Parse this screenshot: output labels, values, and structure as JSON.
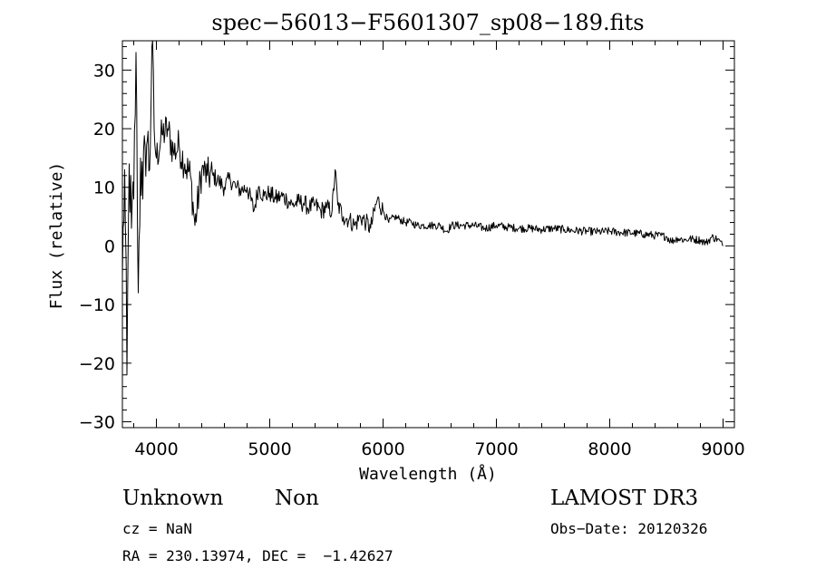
{
  "chart_data": {
    "type": "line",
    "title": "spec−56013−F5601307_sp08−189.fits",
    "xlabel": "Wavelength (Å)",
    "ylabel": "Flux (relative)",
    "xlim": [
      3700,
      9100
    ],
    "ylim": [
      -31,
      35
    ],
    "xticks": [
      4000,
      5000,
      6000,
      7000,
      8000,
      9000
    ],
    "xtick_labels": [
      "4000",
      "5000",
      "6000",
      "7000",
      "8000",
      "9000"
    ],
    "yticks": [
      -30,
      -20,
      -10,
      0,
      10,
      20,
      30
    ],
    "ytick_labels": [
      "−30",
      "−20",
      "−10",
      "0",
      "10",
      "20",
      "30"
    ],
    "grid": false,
    "series": [
      {
        "name": "flux",
        "x": [
          3700,
          3720,
          3740,
          3760,
          3780,
          3800,
          3820,
          3840,
          3860,
          3880,
          3900,
          3920,
          3940,
          3960,
          3980,
          4000,
          4050,
          4100,
          4150,
          4200,
          4250,
          4300,
          4340,
          4400,
          4450,
          4500,
          4550,
          4600,
          4650,
          4700,
          4750,
          4800,
          4861,
          4900,
          4950,
          5000,
          5050,
          5100,
          5150,
          5200,
          5250,
          5300,
          5350,
          5400,
          5450,
          5500,
          5550,
          5577,
          5600,
          5650,
          5700,
          5750,
          5800,
          5850,
          5890,
          5950,
          6000,
          6050,
          6100,
          6150,
          6200,
          6250,
          6300,
          6350,
          6400,
          6450,
          6500,
          6563,
          6600,
          6700,
          6800,
          6900,
          7000,
          7100,
          7200,
          7300,
          7400,
          7500,
          7600,
          7700,
          7800,
          7900,
          8000,
          8100,
          8200,
          8300,
          8400,
          8500,
          8542,
          8600,
          8662,
          8700,
          8800,
          8850,
          8900,
          8950,
          9000
        ],
        "y": [
          -5,
          13,
          -22,
          14,
          3,
          8,
          33,
          -8,
          15,
          8,
          17,
          18,
          13,
          34,
          20,
          15,
          19,
          20,
          16,
          17,
          14,
          12,
          3.5,
          13,
          12,
          12,
          11,
          10,
          11.5,
          10,
          9.5,
          10,
          6,
          10,
          8.5,
          9,
          8,
          8.5,
          8,
          7,
          7.5,
          7.3,
          6.5,
          7,
          6,
          6.5,
          6,
          13,
          7,
          5,
          4.5,
          3.5,
          5,
          4,
          3,
          8,
          6,
          4,
          5,
          4.5,
          4,
          4,
          3.5,
          3.5,
          3.5,
          3.5,
          3.5,
          2.5,
          3.5,
          3.5,
          3.5,
          3,
          3.5,
          3.2,
          3,
          3,
          2.8,
          3,
          2.8,
          2.6,
          2.5,
          2.4,
          2.5,
          2.3,
          2.2,
          2,
          1.8,
          1.6,
          0.8,
          1.3,
          1.0,
          1.2,
          1,
          0.5,
          1.5,
          1.2,
          0
        ]
      }
    ]
  },
  "info": {
    "object_class": "Unknown",
    "object_subclass": "Non",
    "survey": "LAMOST DR3",
    "redshift_line": "cz = NaN",
    "obs_date_line": "Obs−Date: 20120326",
    "coords_line": "RA = 230.13974, DEC =  −1.42627"
  }
}
